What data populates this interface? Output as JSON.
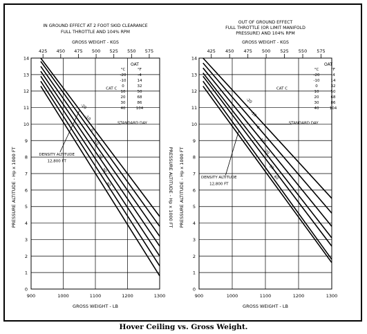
{
  "caption": "Hover Ceiling vs. Gross Weight.",
  "chart_data": [
    {
      "type": "line",
      "title_lines": [
        "IN GROUND EFFECT AT 2 FOOT SKID CLEARANCE",
        "FULL THROTTLE AND 104% RPM"
      ],
      "xlabel": "GROSS WEIGHT - LB",
      "top_axis_label": "GROSS WEIGHT - KGS",
      "ylabel": "PRESSURE ALTITUDE - Hp x 1000 FT",
      "right_ylabel": "PRESSURE ALTITUDE - Hp x 1000 FT",
      "xlim": [
        900,
        1300
      ],
      "ylim": [
        0,
        14
      ],
      "x_ticks": [
        900,
        1000,
        1100,
        1200,
        1300
      ],
      "y_ticks": [
        0,
        1,
        2,
        3,
        4,
        5,
        6,
        7,
        8,
        9,
        10,
        11,
        12,
        13,
        14
      ],
      "top_ticks_kg": [
        425,
        450,
        475,
        500,
        525,
        550,
        575
      ],
      "oat_table": {
        "title": "OAT",
        "headers": [
          "°C",
          "°F"
        ],
        "rows": [
          [
            "-20",
            "-4"
          ],
          [
            "-10",
            "14"
          ],
          [
            "0",
            "32"
          ],
          [
            "10",
            "50"
          ],
          [
            "20",
            "68"
          ],
          [
            "30",
            "86"
          ],
          [
            "40",
            "104"
          ]
        ]
      },
      "annotations": [
        "CAT C",
        "STANDARD DAY",
        "DENSITY ALTITUDE",
        "12,800 FT"
      ],
      "series": [
        {
          "name": "-20",
          "x": [
            930,
            1300
          ],
          "y": [
            14.0,
            4.4
          ]
        },
        {
          "name": "-10",
          "x": [
            930,
            1300
          ],
          "y": [
            13.8,
            3.8
          ]
        },
        {
          "name": "0",
          "x": [
            930,
            1300
          ],
          "y": [
            13.5,
            3.2
          ]
        },
        {
          "name": "10",
          "x": [
            930,
            1300
          ],
          "y": [
            13.2,
            2.6
          ]
        },
        {
          "name": "20",
          "x": [
            930,
            1300
          ],
          "y": [
            12.9,
            2.0
          ]
        },
        {
          "name": "30",
          "x": [
            930,
            1300
          ],
          "y": [
            12.6,
            1.4
          ]
        },
        {
          "name": "40",
          "x": [
            930,
            1300
          ],
          "y": [
            12.3,
            0.8
          ]
        }
      ]
    },
    {
      "type": "line",
      "title_lines": [
        "OUT OF GROUND EFFECT",
        "FULL THROTTLE (OR LIMIT MANIFOLD",
        "PRESSURE) AND 104% RPM"
      ],
      "xlabel": "GROSS WEIGHT - LB",
      "top_axis_label": "GROSS WEIGHT - KGS",
      "ylabel": "PRESSURE ALTITUDE - Hp x 1000 FT",
      "xlim": [
        900,
        1300
      ],
      "ylim": [
        0,
        14
      ],
      "x_ticks": [
        900,
        1000,
        1100,
        1200,
        1300
      ],
      "y_ticks": [
        0,
        1,
        2,
        3,
        4,
        5,
        6,
        7,
        8,
        9,
        10,
        11,
        12,
        13,
        14
      ],
      "top_ticks_kg": [
        425,
        450,
        475,
        500,
        525,
        550,
        575
      ],
      "oat_table": {
        "title": "OAT",
        "headers": [
          "°C",
          "°F"
        ],
        "rows": [
          [
            "-20",
            "-4"
          ],
          [
            "-10",
            "14"
          ],
          [
            "0",
            "32"
          ],
          [
            "10",
            "50"
          ],
          [
            "20",
            "68"
          ],
          [
            "30",
            "86"
          ],
          [
            "40",
            "104"
          ]
        ]
      },
      "annotations": [
        "CAT C",
        "STANDARD DAY",
        "DENSITY ALTITUDE",
        "12,800 FT"
      ],
      "series": [
        {
          "name": "-20",
          "x": [
            912,
            1300
          ],
          "y": [
            14.0,
            5.5
          ]
        },
        {
          "name": "-10",
          "x": [
            912,
            1300
          ],
          "y": [
            13.7,
            4.6
          ]
        },
        {
          "name": "0",
          "x": [
            912,
            1300
          ],
          "y": [
            13.4,
            3.8
          ]
        },
        {
          "name": "10",
          "x": [
            912,
            1300
          ],
          "y": [
            13.1,
            3.1
          ]
        },
        {
          "name": "20",
          "x": [
            912,
            1300
          ],
          "y": [
            12.9,
            2.6
          ]
        },
        {
          "name": "30",
          "x": [
            912,
            1300
          ],
          "y": [
            12.6,
            1.8
          ]
        },
        {
          "name": "40",
          "x": [
            912,
            1300
          ],
          "y": [
            12.3,
            1.6
          ]
        }
      ]
    }
  ]
}
